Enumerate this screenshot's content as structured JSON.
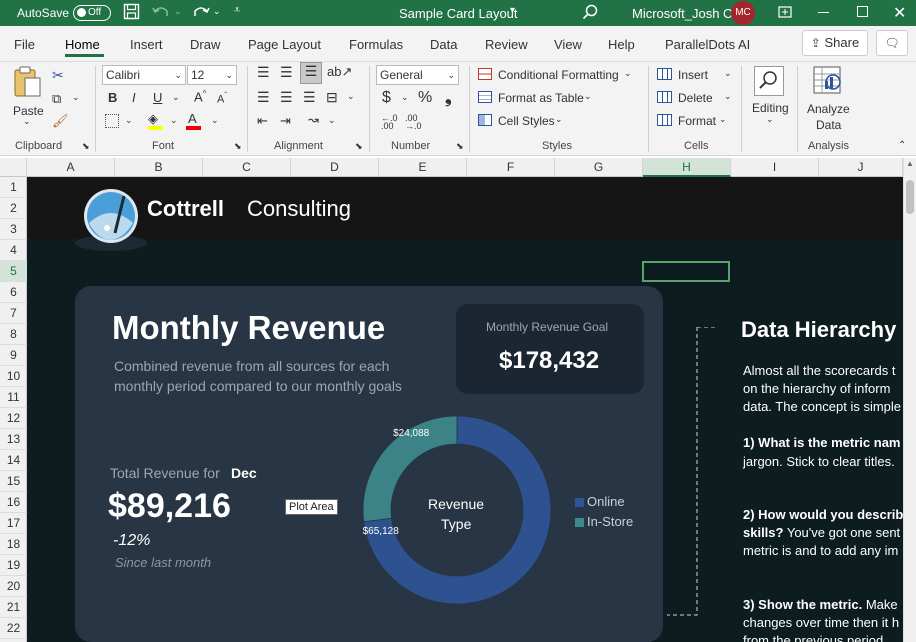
{
  "titlebar": {
    "autosave_label": "AutoSave",
    "autosave_state": "Off",
    "doc_title": "Sample Card Layout",
    "user_name": "Microsoft_Josh C",
    "user_initials": "MC"
  },
  "menu": {
    "tabs": [
      "File",
      "Home",
      "Insert",
      "Draw",
      "Page Layout",
      "Formulas",
      "Data",
      "Review",
      "View",
      "Help",
      "ParallelDots AI"
    ],
    "share_label": "Share"
  },
  "ribbon": {
    "paste_label": "Paste",
    "font_name": "Calibri",
    "font_size": "12",
    "number_format": "General",
    "conditional_formatting": "Conditional Formatting",
    "format_as_table": "Format as Table",
    "cell_styles": "Cell Styles",
    "insert": "Insert",
    "delete": "Delete",
    "format": "Format",
    "editing": "Editing",
    "analyze_line1": "Analyze",
    "analyze_line2": "Data",
    "groups": {
      "clipboard": "Clipboard",
      "font": "Font",
      "alignment": "Alignment",
      "number": "Number",
      "styles": "Styles",
      "cells": "Cells",
      "analysis": "Analysis"
    }
  },
  "grid": {
    "columns": [
      "A",
      "B",
      "C",
      "D",
      "E",
      "F",
      "G",
      "H",
      "I",
      "J"
    ],
    "selected_column": "H",
    "rows": [
      "1",
      "2",
      "3",
      "4",
      "5",
      "6",
      "7",
      "8",
      "9",
      "10",
      "11",
      "12",
      "13",
      "14",
      "15",
      "16",
      "17",
      "18",
      "19",
      "20",
      "21",
      "22"
    ]
  },
  "dashboard": {
    "company_bold": "Cottrell",
    "company_light": "Consulting",
    "card_title": "Monthly Revenue",
    "card_subtitle_1": "Combined revenue from all sources for each",
    "card_subtitle_2": "monthly period compared to our monthly goals",
    "goal_label": "Monthly Revenue Goal",
    "goal_value": "$178,432",
    "total_label": "Total Revenue for",
    "total_month": "Dec",
    "total_value": "$89,216",
    "change_pct": "-12%",
    "change_note": "Since last month",
    "plot_area_tooltip": "Plot Area",
    "hierarchy_title": "Data Hierarchy",
    "hierarchy_lines": [
      "Almost all the scorecards t",
      "on the hierarchy of inform",
      "data. The concept is simple"
    ],
    "q1_bold": "1) What is the metric nam",
    "q1_rest": "jargon. Stick to clear titles.",
    "q2_bold_1": "2) How would you describ",
    "q2_bold_2": "skills?",
    "q2_rest_1": " You've got one sent",
    "q2_rest_2": "metric is and to add any im",
    "q3_bold": "3) Show the metric.",
    "q3_rest_1": " Make",
    "q3_rest_2": "changes over time then it h",
    "q3_rest_3": "from the previous period."
  },
  "chart_data": {
    "type": "pie",
    "title": "Revenue Type",
    "categories": [
      "Online",
      "In-Store"
    ],
    "values": [
      65128,
      24088
    ],
    "data_labels": [
      "$65,128",
      "$24,088"
    ],
    "colors": [
      "#2f5597",
      "#3d8a8c"
    ],
    "legend_position": "right"
  }
}
